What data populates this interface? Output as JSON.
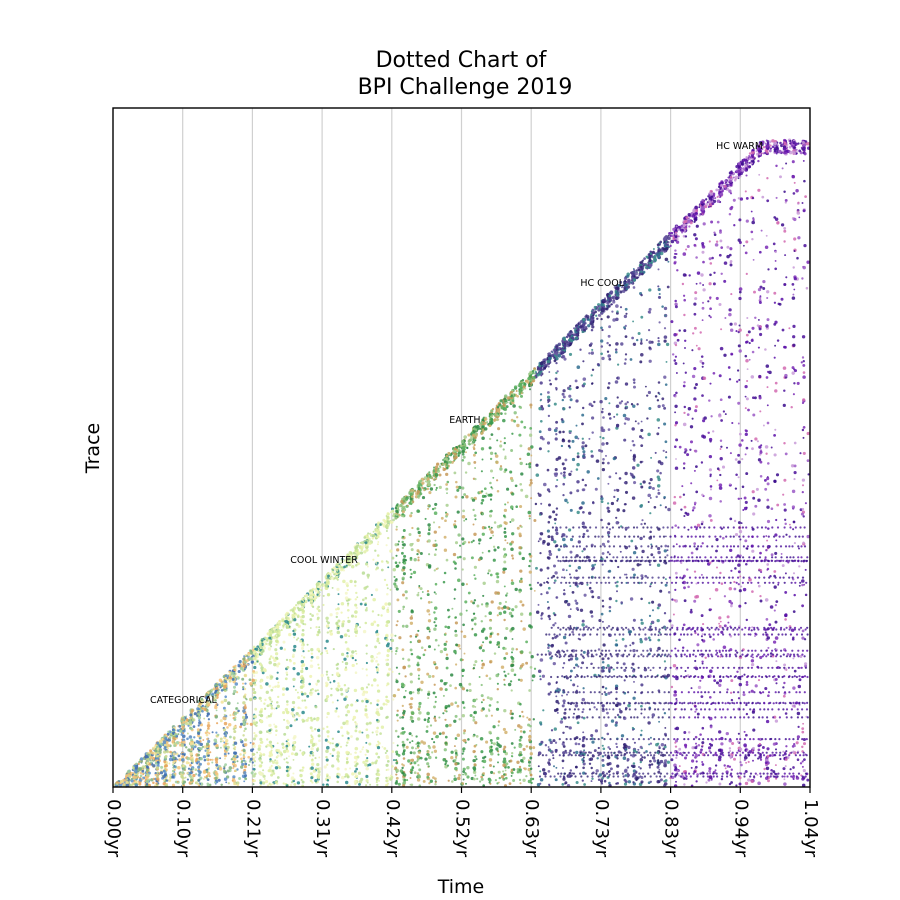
{
  "chart_data": {
    "type": "scatter",
    "title_lines": [
      "Dotted Chart of",
      "BPI Challenge 2019"
    ],
    "xlabel": "Time",
    "ylabel": "Trace",
    "x_unit": "yr",
    "x_ticks": [
      "0.00yr",
      "0.10yr",
      "0.21yr",
      "0.31yr",
      "0.42yr",
      "0.52yr",
      "0.63yr",
      "0.73yr",
      "0.83yr",
      "0.94yr",
      "1.04yr"
    ],
    "xlim": [
      0.0,
      1.04
    ],
    "grid": "vertical",
    "segments": [
      {
        "label": "CATEGORICAL",
        "x_range": [
          0.0,
          0.21
        ],
        "palette": [
          "#f4c27a",
          "#9dcfa0",
          "#f2e39a",
          "#5b8fc9",
          "#e8a35a",
          "#7fb17e",
          "#c9d98f",
          "#3f6fb0"
        ]
      },
      {
        "label": "COOL WINTER",
        "x_range": [
          0.21,
          0.42
        ],
        "palette": [
          "#eef3b2",
          "#e2f0a8",
          "#d4ea9c",
          "#c5e29a",
          "#f3f6c8",
          "#b9dc95",
          "#2a8a8c"
        ]
      },
      {
        "label": "EARTH",
        "x_range": [
          0.42,
          0.63
        ],
        "palette": [
          "#3c9a4d",
          "#5cb060",
          "#89c27f",
          "#a8cf8f",
          "#c79a5a",
          "#2e8a45",
          "#d2b26f"
        ]
      },
      {
        "label": "HC COOL",
        "x_range": [
          0.63,
          0.83
        ],
        "palette": [
          "#3b2a7a",
          "#2d1f6e",
          "#4a3a8c",
          "#5a4b98",
          "#2f6d8f",
          "#3a8d8a",
          "#6b5aa3"
        ]
      },
      {
        "label": "HC WARM",
        "x_range": [
          0.83,
          1.04
        ],
        "palette": [
          "#4b0f9a",
          "#5a0fa8",
          "#3a0a8c",
          "#7a2ab5",
          "#9a58c6",
          "#c89bd8",
          "#d26ab0"
        ]
      }
    ]
  }
}
